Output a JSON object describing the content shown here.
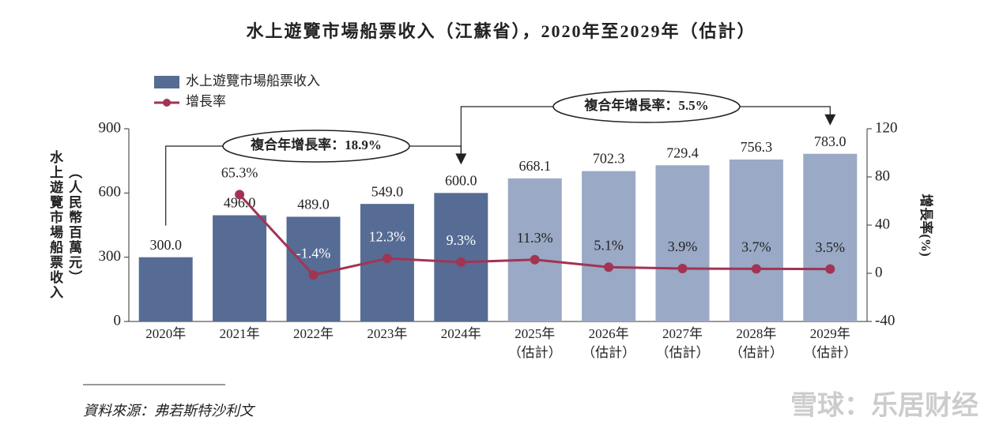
{
  "chart_data": {
    "type": "bar_line",
    "title": "水上遊覽市場船票收入（江蘇省），2020年至2029年（估計）",
    "categories": [
      [
        "2020年"
      ],
      [
        "2021年"
      ],
      [
        "2022年"
      ],
      [
        "2023年"
      ],
      [
        "2024年"
      ],
      [
        "2025年",
        "（估計）"
      ],
      [
        "2026年",
        "（估計）"
      ],
      [
        "2027年",
        "（估計）"
      ],
      [
        "2028年",
        "（估計）"
      ],
      [
        "2029年",
        "（估計）"
      ]
    ],
    "ylabel": [
      "水上遊覽市場船票收入",
      "（人民幣百萬元）"
    ],
    "y2label": "增長率(%)",
    "ylim": [
      0,
      900
    ],
    "yticks": [
      0,
      300,
      600,
      900
    ],
    "y2lim": [
      -40,
      120
    ],
    "y2ticks": [
      -40,
      0,
      40,
      80,
      120
    ],
    "series": [
      {
        "name": "水上遊覽市場船票收入",
        "type": "bar",
        "colors": [
          "#566c94",
          "#566c94",
          "#566c94",
          "#566c94",
          "#566c94",
          "#9aa9c5",
          "#9aa9c5",
          "#9aa9c5",
          "#9aa9c5",
          "#9aa9c5"
        ],
        "values": [
          300,
          496,
          489,
          549,
          600,
          668.1,
          702.3,
          729.4,
          756.3,
          783.0
        ],
        "value_labels": [
          "300.0",
          "496.0",
          "489.0",
          "549.0",
          "600.0",
          "668.1",
          "702.3",
          "729.4",
          "756.3",
          "783.0"
        ]
      },
      {
        "name": "增長率",
        "type": "line",
        "axis": "y2",
        "color": "#a23453",
        "values": [
          null,
          65.3,
          -1.4,
          12.3,
          9.3,
          11.3,
          5.1,
          3.9,
          3.7,
          3.5
        ],
        "value_labels": [
          null,
          "65.3%",
          "-1.4%",
          "12.3%",
          "9.3%",
          "11.3%",
          "5.1%",
          "3.9%",
          "3.7%",
          "3.5%"
        ]
      }
    ],
    "annotations": [
      "複合年增長率：18.9%",
      "複合年增長率：5.5%"
    ],
    "source": "資料來源：弗若斯特沙利文",
    "watermark": "雪球：乐居财经"
  }
}
